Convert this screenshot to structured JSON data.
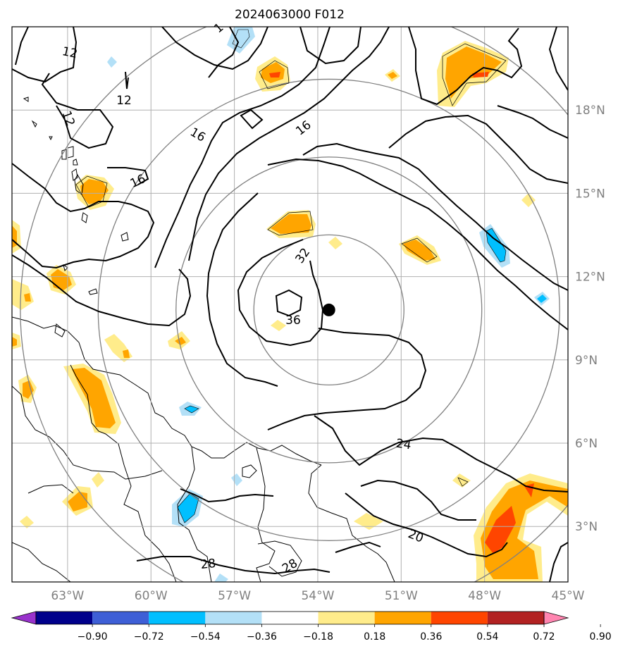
{
  "title": "2024063000 F012",
  "map": {
    "lon_range": [
      -65,
      -45
    ],
    "lat_range": [
      1,
      21
    ],
    "lon_ticks": [
      {
        "value": -63,
        "label": "63°W"
      },
      {
        "value": -60,
        "label": "60°W"
      },
      {
        "value": -57,
        "label": "57°W"
      },
      {
        "value": -54,
        "label": "54°W"
      },
      {
        "value": -51,
        "label": "51°W"
      },
      {
        "value": -48,
        "label": "48°W"
      },
      {
        "value": -45,
        "label": "45°W"
      }
    ],
    "lat_ticks": [
      {
        "value": 18,
        "label": "18°N"
      },
      {
        "value": 15,
        "label": "15°N"
      },
      {
        "value": 12,
        "label": "12°N"
      },
      {
        "value": 9,
        "label": "9°N"
      },
      {
        "value": 6,
        "label": "6°N"
      },
      {
        "value": 3,
        "label": "3°N"
      }
    ],
    "grid": true,
    "storm_center": {
      "lon": -53.6,
      "lat": 10.8
    },
    "range_ring_radii_deg": [
      2.7,
      5.5,
      8.3,
      11.1
    ],
    "contour_labels": [
      "12",
      "12",
      "12",
      "16",
      "16",
      "16",
      "32",
      "36",
      "24",
      "20",
      "28",
      "28",
      "1"
    ]
  },
  "colorbar": {
    "colors": [
      "#9932cc",
      "#00008b",
      "#3e5fd6",
      "#00bfff",
      "#b3e0f7",
      "#ffffff",
      "#ffec8b",
      "#ffa500",
      "#ff4500",
      "#b22222",
      "#ff85b0"
    ],
    "tick_labels": [
      "−0.90",
      "−0.72",
      "−0.54",
      "−0.36",
      "−0.18",
      "0.18",
      "0.36",
      "0.54",
      "0.72",
      "0.90"
    ]
  }
}
